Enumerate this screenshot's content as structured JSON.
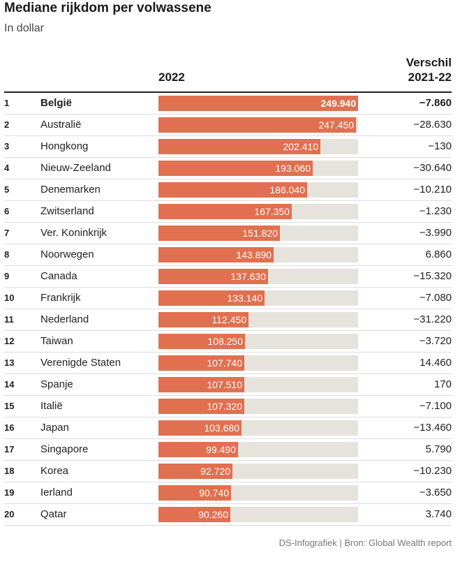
{
  "header": {
    "title": "Mediane rijkdom per volwassene",
    "subtitle": "In dollar",
    "col_year": "2022",
    "col_diff_line1": "Verschil",
    "col_diff_line2": "2021-22"
  },
  "footer": {
    "source": "DS-Infografiek | Bron: Global Wealth report"
  },
  "colors": {
    "bar": "#e07050",
    "track": "#e6e3dd"
  },
  "chart_data": {
    "type": "bar",
    "orientation": "horizontal",
    "title": "Mediane rijkdom per volwassene",
    "subtitle": "In dollar",
    "series_label": "2022",
    "xlim": [
      0,
      250000
    ],
    "rows": [
      {
        "rank": "1",
        "country": "België",
        "value": 249940,
        "value_label": "249.940",
        "diff": "−7.860",
        "bold": true
      },
      {
        "rank": "2",
        "country": "Australië",
        "value": 247450,
        "value_label": "247.450",
        "diff": "−28.630"
      },
      {
        "rank": "3",
        "country": "Hongkong",
        "value": 202410,
        "value_label": "202.410",
        "diff": "−130"
      },
      {
        "rank": "4",
        "country": "Nieuw-Zeeland",
        "value": 193060,
        "value_label": "193.060",
        "diff": "−30.640"
      },
      {
        "rank": "5",
        "country": "Denemarken",
        "value": 186040,
        "value_label": "186.040",
        "diff": "−10.210"
      },
      {
        "rank": "6",
        "country": "Zwitserland",
        "value": 167350,
        "value_label": "167.350",
        "diff": "−1.230"
      },
      {
        "rank": "7",
        "country": "Ver. Koninkrijk",
        "value": 151820,
        "value_label": "151.820",
        "diff": "−3.990"
      },
      {
        "rank": "8",
        "country": "Noorwegen",
        "value": 143890,
        "value_label": "143.890",
        "diff": "6.860"
      },
      {
        "rank": "9",
        "country": "Canada",
        "value": 137630,
        "value_label": "137.630",
        "diff": "−15.320"
      },
      {
        "rank": "10",
        "country": "Frankrijk",
        "value": 133140,
        "value_label": "133.140",
        "diff": "−7.080"
      },
      {
        "rank": "11",
        "country": "Nederland",
        "value": 112450,
        "value_label": "112.450",
        "diff": "−31.220"
      },
      {
        "rank": "12",
        "country": "Taiwan",
        "value": 108250,
        "value_label": "108.250",
        "diff": "−3.720"
      },
      {
        "rank": "13",
        "country": "Verenigde Staten",
        "value": 107740,
        "value_label": "107.740",
        "diff": "14.460"
      },
      {
        "rank": "14",
        "country": "Spanje",
        "value": 107510,
        "value_label": "107.510",
        "diff": "170"
      },
      {
        "rank": "15",
        "country": "Italië",
        "value": 107320,
        "value_label": "107.320",
        "diff": "−7.100"
      },
      {
        "rank": "16",
        "country": "Japan",
        "value": 103680,
        "value_label": "103.680",
        "diff": "−13.460"
      },
      {
        "rank": "17",
        "country": "Singapore",
        "value": 99490,
        "value_label": "99.490",
        "diff": "5.790"
      },
      {
        "rank": "18",
        "country": "Korea",
        "value": 92720,
        "value_label": "92.720",
        "diff": "−10.230"
      },
      {
        "rank": "19",
        "country": "Ierland",
        "value": 90740,
        "value_label": "90.740",
        "diff": "−3.650"
      },
      {
        "rank": "20",
        "country": "Qatar",
        "value": 90260,
        "value_label": "90.260",
        "diff": "3.740"
      }
    ]
  }
}
